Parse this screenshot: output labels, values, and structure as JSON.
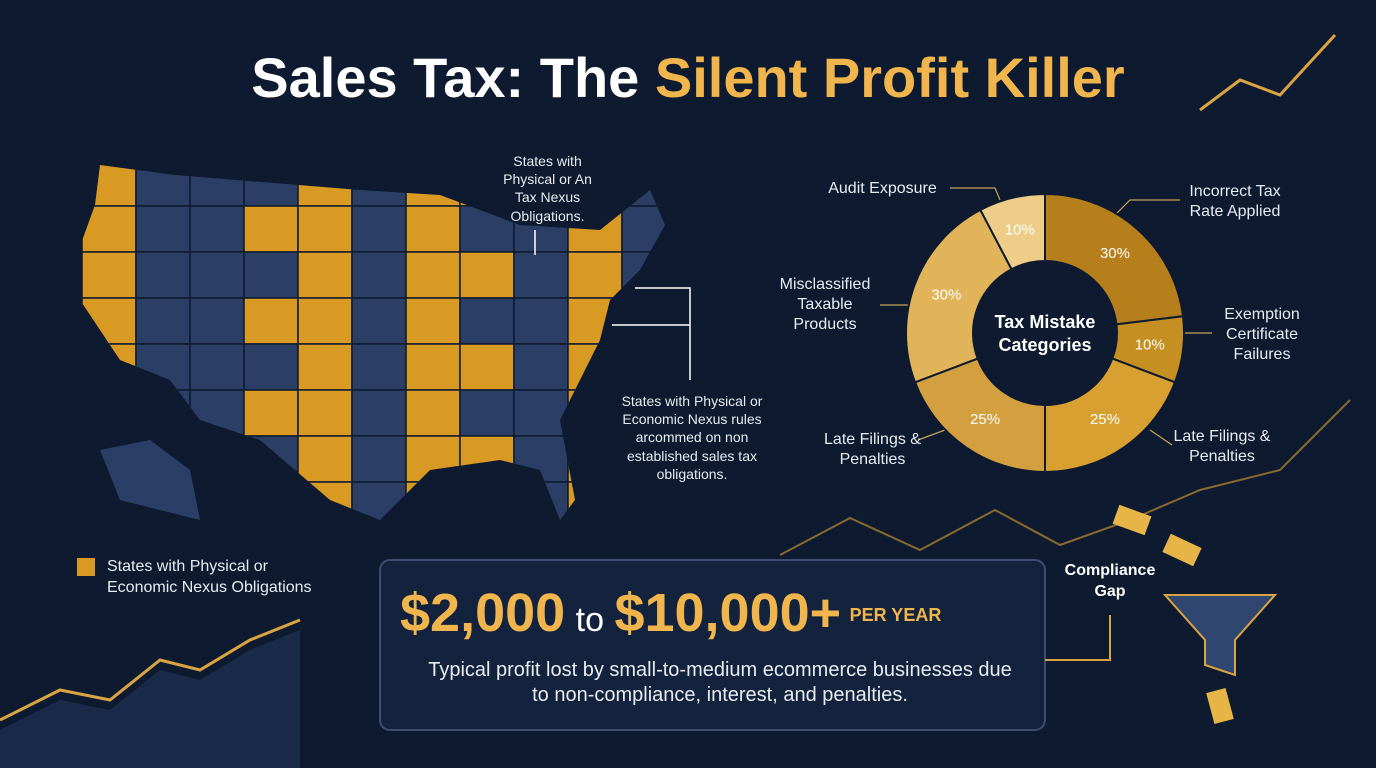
{
  "title_part1": "Sales Tax: The",
  "title_part2": "Silent Profit Killer",
  "map": {
    "annotation_top": "States with Physical or An Tax Nexus Obligations.",
    "annotation_right": "States with Physical or Economic Nexus rules arcommed on non established sales tax obligations.",
    "legend": "States with Physical or Economic Nexus Obligations"
  },
  "chart_data": {
    "type": "pie",
    "title": "Tax Mistake Categories",
    "categories": [
      "Incorrect Tax Rate Applied",
      "Exemption Certificate Failures",
      "Late Filings & Penalties",
      "Late Filings & Penalties",
      "Misclassified Taxable Products",
      "Audit Exposure"
    ],
    "values": [
      30,
      10,
      25,
      25,
      30,
      10
    ],
    "value_labels": [
      "30%",
      "10%",
      "25%",
      "25%",
      "30%",
      "10%"
    ],
    "colors": [
      "#b67f1c",
      "#c58f22",
      "#d8a031",
      "#d49f3e",
      "#e2b459",
      "#edcd88"
    ]
  },
  "callout": {
    "low": "$2,000",
    "to": "to",
    "high": "$10,000+",
    "unit": "PER YEAR",
    "description": "Typical profit lost by small-to-medium ecommerce businesses due to non-compliance, interest, and penalties."
  },
  "compliance_gap": "Compliance Gap"
}
